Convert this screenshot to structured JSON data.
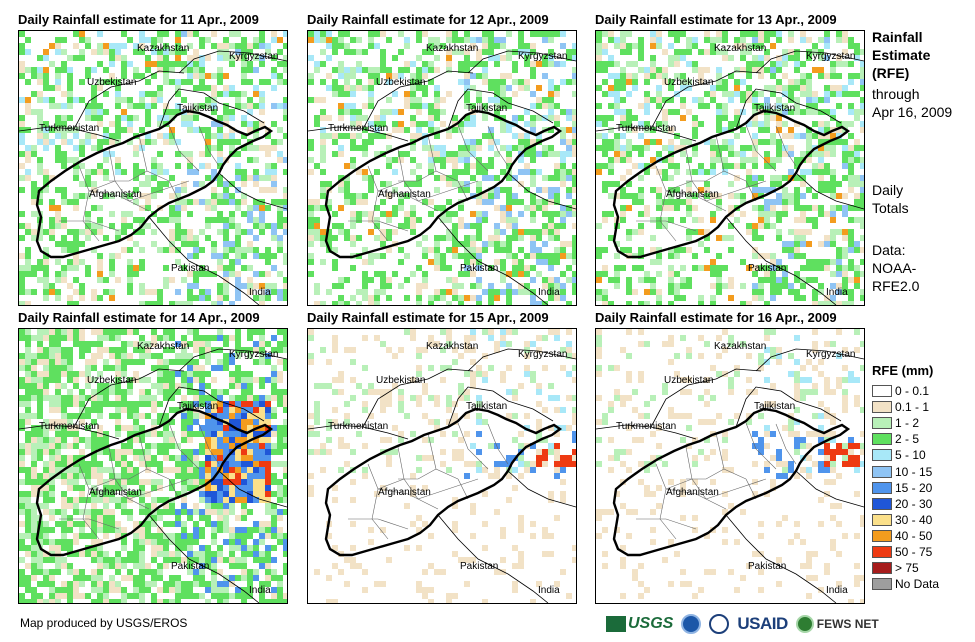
{
  "panels": [
    {
      "title": "Daily Rainfall estimate for 11 Apr., 2009",
      "intensity": "moderate"
    },
    {
      "title": "Daily Rainfall estimate for 12 Apr., 2009",
      "intensity": "moderate"
    },
    {
      "title": "Daily Rainfall estimate for 13 Apr., 2009",
      "intensity": "moderate"
    },
    {
      "title": "Daily Rainfall estimate for 14 Apr., 2009",
      "intensity": "heavy"
    },
    {
      "title": "Daily Rainfall estimate for 15 Apr., 2009",
      "intensity": "light"
    },
    {
      "title": "Daily Rainfall estimate for 16 Apr., 2009",
      "intensity": "light"
    }
  ],
  "map_labels": {
    "kazakhstan": "Kazakhstan",
    "kyrgyzstan": "Kyrgyzstan",
    "uzbekistan": "Uzbekistan",
    "tajikistan": "Tajikistan",
    "turkmenistan": "Turkmenistan",
    "afghanistan": "Afghanistan",
    "pakistan": "Pakistan",
    "india": "India"
  },
  "sidebar": {
    "title_line1": "Rainfall",
    "title_line2": "Estimate",
    "title_line3": "(RFE)",
    "through": "through",
    "through_date": "Apr 16, 2009",
    "daily_line1": "Daily",
    "daily_line2": "Totals",
    "data_line1": "Data:",
    "data_line2": "NOAA-",
    "data_line3": "RFE2.0"
  },
  "legend": {
    "title": "RFE (mm)",
    "items": [
      {
        "label": "0 - 0.1",
        "color": "#ffffff"
      },
      {
        "label": "0.1 - 1",
        "color": "#f2e2c6"
      },
      {
        "label": "1 - 2",
        "color": "#b8f0b8"
      },
      {
        "label": "2 - 5",
        "color": "#5fe05f"
      },
      {
        "label": "5 - 10",
        "color": "#a8e8f8"
      },
      {
        "label": "10 - 15",
        "color": "#8fc4f4"
      },
      {
        "label": "15 - 20",
        "color": "#4f94ec"
      },
      {
        "label": "20 - 30",
        "color": "#1f56d8"
      },
      {
        "label": "30 - 40",
        "color": "#fbe08a"
      },
      {
        "label": "40 - 50",
        "color": "#f39c1e"
      },
      {
        "label": "50 - 75",
        "color": "#ee3a12"
      },
      {
        "label": "> 75",
        "color": "#a61c1c"
      },
      {
        "label": "No Data",
        "color": "#9e9e9e"
      }
    ]
  },
  "footer": {
    "credit": "Map produced by USGS/EROS",
    "usgs": "USGS",
    "usaid": "USAID",
    "fews": "FEWS NET"
  }
}
